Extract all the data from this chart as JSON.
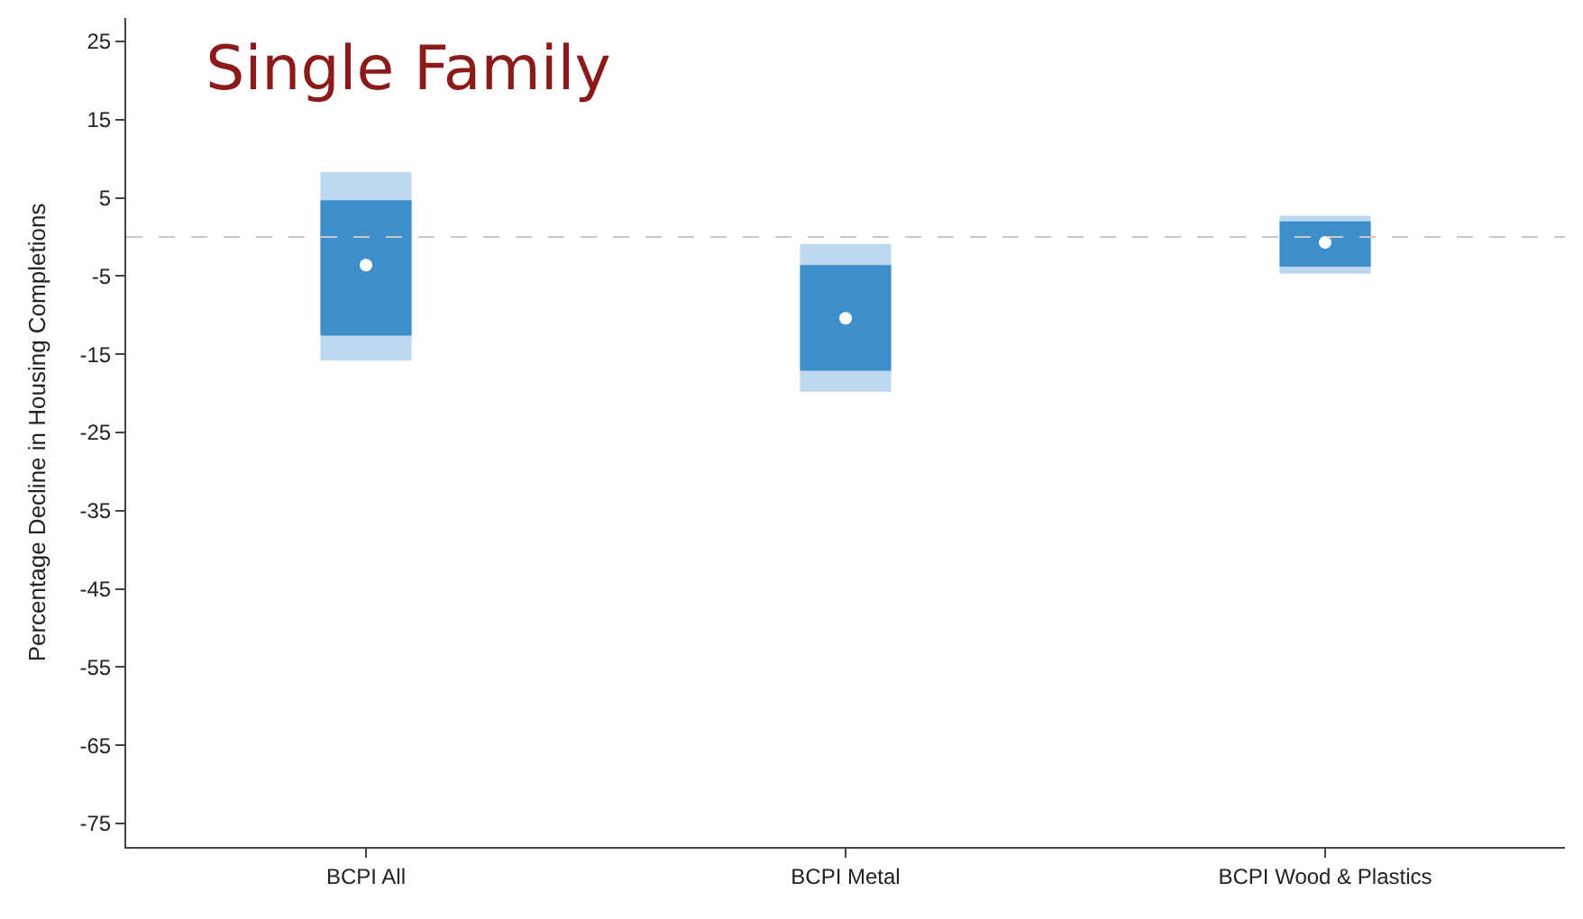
{
  "chart_data": {
    "type": "bar",
    "title": "Single Family",
    "ylabel": "Percentage Decline in Housing Completions",
    "categories": [
      "BCPI All",
      "BCPI Metal",
      "BCPI Wood & Plastics"
    ],
    "series": [
      {
        "color": "#bcd7ee",
        "base": [
          -15.8,
          -19.8,
          -4.7
        ],
        "values": [
          24.1,
          18.9,
          7.4
        ]
      },
      {
        "color": "#3d8fc9",
        "base": [
          -12.6,
          -17.1,
          -3.8
        ],
        "values": [
          17.3,
          13.5,
          5.8
        ]
      },
      {
        "type": "scatter",
        "color": "#ffffff",
        "marker": "circle",
        "values": [
          -3.6,
          -10.4,
          -0.7
        ]
      }
    ],
    "ylim": [
      -78,
      28
    ],
    "yticks": [
      25,
      15,
      5,
      -5,
      -15,
      -25,
      -35,
      -45,
      -55,
      -65,
      -75
    ],
    "legend": false,
    "ref_lines": [
      {
        "axis": "y",
        "value": 0,
        "color": "#c8c8c8",
        "line_style": "dashed"
      }
    ]
  }
}
